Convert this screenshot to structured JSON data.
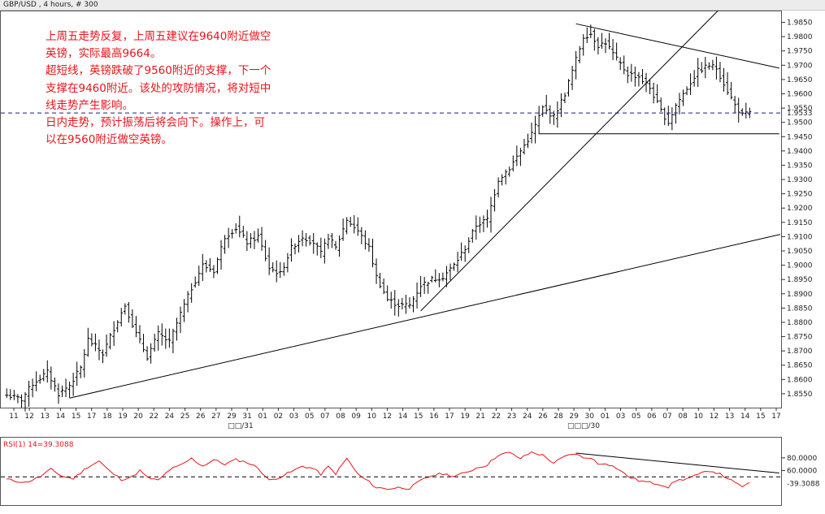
{
  "title": "GBP/USD , 4 hours, # 300",
  "annotation_lines": [
    "上周五走势反复，上周五建议在9640附近做空",
    "英镑，实际最高9664。",
    "超短线，英镑跌破了9560附近的支撑，下一个",
    "支撑在9460附近。该处的攻防情况，将对短中",
    "线走势产生影响。",
    "日内走势，预计振荡后将会向下。操作上，可",
    "以在9560附近做空英镑。"
  ],
  "chart_data": [
    {
      "type": "candlestick",
      "title": "GBP/USD , 4 hours, # 300",
      "y_ticks": [
        "1.9850",
        "1.9800",
        "1.9750",
        "1.9700",
        "1.9650",
        "1.9600",
        "1.9550",
        "1.9500",
        "1.9450",
        "1.9400",
        "1.9350",
        "1.9300",
        "1.9250",
        "1.9200",
        "1.9150",
        "1.9100",
        "1.9050",
        "1.9000",
        "1.8950",
        "1.8900",
        "1.8850",
        "1.8800",
        "1.8750",
        "1.8700",
        "1.8650",
        "1.8600",
        "1.8550"
      ],
      "ylim": [
        1.851,
        1.988
      ],
      "x_ticks": [
        "11",
        "12",
        "13",
        "14",
        "15",
        "17",
        "18",
        "19",
        "20",
        "22",
        "24",
        "25",
        "26",
        "27",
        "29",
        "31",
        "01",
        "02",
        "03",
        "05",
        "07",
        "08",
        "09",
        "10",
        "12",
        "14",
        "15",
        "16",
        "17",
        "19",
        "21",
        "22",
        "23",
        "24",
        "26",
        "28",
        "29",
        "30",
        "01",
        "03",
        "05",
        "06",
        "07",
        "08",
        "10",
        "12",
        "13",
        "14",
        "15",
        "17"
      ],
      "month_labels": [
        "□□/31",
        "□□□/30"
      ],
      "last_price": "1.9533",
      "last_price_value": 1.9533,
      "price_path": [
        [
          0,
          1.8545
        ],
        [
          4,
          1.853
        ],
        [
          7,
          1.8585
        ],
        [
          11,
          1.8625
        ],
        [
          14,
          1.855
        ],
        [
          17,
          1.858
        ],
        [
          20,
          1.864
        ],
        [
          22,
          1.874
        ],
        [
          26,
          1.869
        ],
        [
          29,
          1.878
        ],
        [
          32,
          1.886
        ],
        [
          35,
          1.876
        ],
        [
          38,
          1.868
        ],
        [
          41,
          1.876
        ],
        [
          44,
          1.873
        ],
        [
          47,
          1.883
        ],
        [
          50,
          1.892
        ],
        [
          53,
          1.9
        ],
        [
          56,
          1.898
        ],
        [
          59,
          1.91
        ],
        [
          62,
          1.913
        ],
        [
          65,
          1.908
        ],
        [
          68,
          1.91
        ],
        [
          71,
          1.899
        ],
        [
          74,
          1.897
        ],
        [
          77,
          1.906
        ],
        [
          80,
          1.91
        ],
        [
          83,
          1.908
        ],
        [
          85,
          1.904
        ],
        [
          87,
          1.91
        ],
        [
          89,
          1.906
        ],
        [
          92,
          1.916
        ],
        [
          95,
          1.912
        ],
        [
          98,
          1.906
        ],
        [
          100,
          1.896
        ],
        [
          103,
          1.888
        ],
        [
          106,
          1.886
        ],
        [
          109,
          1.886
        ],
        [
          112,
          1.893
        ],
        [
          115,
          1.895
        ],
        [
          118,
          1.896
        ],
        [
          121,
          1.9
        ],
        [
          124,
          1.906
        ],
        [
          127,
          1.914
        ],
        [
          130,
          1.916
        ],
        [
          133,
          1.93
        ],
        [
          136,
          1.934
        ],
        [
          139,
          1.94
        ],
        [
          142,
          1.946
        ],
        [
          145,
          1.955
        ],
        [
          148,
          1.952
        ],
        [
          151,
          1.96
        ],
        [
          154,
          1.972
        ],
        [
          156,
          1.98
        ],
        [
          158,
          1.981
        ],
        [
          160,
          1.977
        ],
        [
          162,
          1.978
        ],
        [
          165,
          1.972
        ],
        [
          168,
          1.967
        ],
        [
          171,
          1.966
        ],
        [
          174,
          1.962
        ],
        [
          177,
          1.954
        ],
        [
          179,
          1.95
        ],
        [
          181,
          1.956
        ],
        [
          184,
          1.962
        ],
        [
          187,
          1.968
        ],
        [
          190,
          1.97
        ],
        [
          192,
          1.969
        ],
        [
          195,
          1.961
        ],
        [
          197,
          1.956
        ],
        [
          199,
          1.9525
        ],
        [
          201,
          1.9533
        ]
      ],
      "trendlines": [
        {
          "from": [
            17,
            1.8535
          ],
          "to": [
            210,
            1.911
          ]
        },
        {
          "from": [
            112,
            1.884
          ],
          "to": [
            200,
            1.999
          ]
        },
        {
          "from": [
            154,
            1.9845
          ],
          "to": [
            209,
            1.969
          ]
        },
        {
          "from": [
            144,
            1.946
          ],
          "to": [
            209,
            1.946
          ]
        }
      ],
      "dashed_level": 1.9533
    },
    {
      "type": "line",
      "title": "RSI(1) 14=39.3088",
      "y_ticks": [
        "80.0000",
        "60.0000"
      ],
      "ylim": [
        8,
        108
      ],
      "last_value": "39.3088",
      "last_value_num": 39.31,
      "dashed_level": 50,
      "values": [
        [
          0,
          46
        ],
        [
          5,
          41
        ],
        [
          9,
          50
        ],
        [
          12,
          62
        ],
        [
          15,
          51
        ],
        [
          18,
          47
        ],
        [
          22,
          66
        ],
        [
          25,
          75
        ],
        [
          28,
          58
        ],
        [
          31,
          46
        ],
        [
          34,
          50
        ],
        [
          36,
          60
        ],
        [
          38,
          49
        ],
        [
          41,
          44
        ],
        [
          44,
          61
        ],
        [
          47,
          68
        ],
        [
          50,
          79
        ],
        [
          53,
          67
        ],
        [
          56,
          77
        ],
        [
          59,
          70
        ],
        [
          62,
          77
        ],
        [
          65,
          73
        ],
        [
          68,
          64
        ],
        [
          71,
          44
        ],
        [
          74,
          50
        ],
        [
          77,
          58
        ],
        [
          80,
          67
        ],
        [
          83,
          63
        ],
        [
          85,
          54
        ],
        [
          87,
          66
        ],
        [
          89,
          55
        ],
        [
          92,
          79
        ],
        [
          95,
          54
        ],
        [
          98,
          42
        ],
        [
          100,
          33
        ],
        [
          103,
          31
        ],
        [
          106,
          33
        ],
        [
          109,
          32
        ],
        [
          112,
          44
        ],
        [
          115,
          52
        ],
        [
          118,
          55
        ],
        [
          121,
          51
        ],
        [
          124,
          56
        ],
        [
          127,
          64
        ],
        [
          130,
          69
        ],
        [
          133,
          85
        ],
        [
          136,
          88
        ],
        [
          139,
          79
        ],
        [
          142,
          89
        ],
        [
          145,
          84
        ],
        [
          148,
          72
        ],
        [
          151,
          82
        ],
        [
          154,
          87
        ],
        [
          156,
          79
        ],
        [
          158,
          81
        ],
        [
          160,
          70
        ],
        [
          162,
          72
        ],
        [
          165,
          64
        ],
        [
          168,
          51
        ],
        [
          171,
          44
        ],
        [
          174,
          41
        ],
        [
          177,
          38
        ],
        [
          179,
          34
        ],
        [
          181,
          44
        ],
        [
          184,
          47
        ],
        [
          187,
          53
        ],
        [
          190,
          60
        ],
        [
          192,
          57
        ],
        [
          195,
          48
        ],
        [
          197,
          40
        ],
        [
          199,
          35
        ],
        [
          201,
          39.3
        ]
      ],
      "trendline": {
        "from": [
          154,
          87.5
        ],
        "to": [
          209,
          56
        ]
      }
    }
  ]
}
